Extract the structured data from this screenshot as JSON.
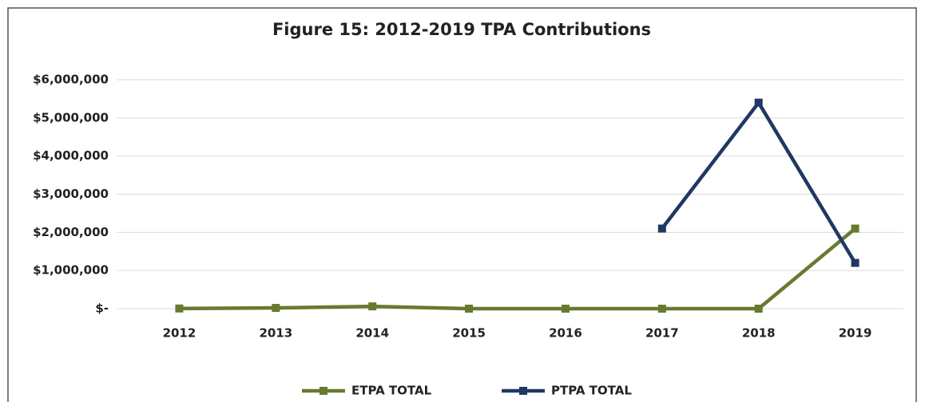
{
  "chart_data": {
    "type": "line",
    "title": "Figure 15: 2012-2019 TPA Contributions",
    "categories": [
      "2012",
      "2013",
      "2014",
      "2015",
      "2016",
      "2017",
      "2018",
      "2019"
    ],
    "series": [
      {
        "name": "ETPA TOTAL",
        "color": "#677a2e",
        "values": [
          5000,
          20000,
          60000,
          0,
          0,
          0,
          0,
          2100000
        ]
      },
      {
        "name": "PTPA TOTAL",
        "color": "#1f3864",
        "values": [
          null,
          null,
          null,
          null,
          null,
          2100000,
          5400000,
          1200000
        ]
      }
    ],
    "ylim": [
      0,
      6000000
    ],
    "yticks": [
      {
        "value": 0,
        "label": "$-"
      },
      {
        "value": 1000000,
        "label": "$1,000,000"
      },
      {
        "value": 2000000,
        "label": "$2,000,000"
      },
      {
        "value": 3000000,
        "label": "$3,000,000"
      },
      {
        "value": 4000000,
        "label": "$4,000,000"
      },
      {
        "value": 5000000,
        "label": "$5,000,000"
      },
      {
        "value": 6000000,
        "label": "$6,000,000"
      }
    ],
    "grid": true,
    "legend": "bottom"
  }
}
